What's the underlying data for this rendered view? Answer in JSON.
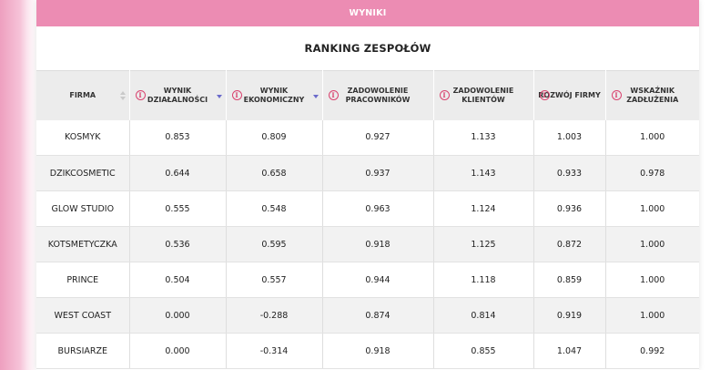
{
  "header": {
    "bar_label": "WYNIKI",
    "title": "RANKING ZESPOŁÓW"
  },
  "table": {
    "columns": [
      {
        "label": "FIRMA",
        "info": false,
        "sort": "both"
      },
      {
        "label": "WYNIK DZIAŁALNOŚCI",
        "info": true,
        "sort": "desc"
      },
      {
        "label": "WYNIK EKONOMICZNY",
        "info": true,
        "sort": "desc"
      },
      {
        "label": "ZADOWOLENIE PRACOWNIKÓW",
        "info": true,
        "sort": "none"
      },
      {
        "label": "ZADOWOLENIE KLIENTÓW",
        "info": true,
        "sort": "none"
      },
      {
        "label": "ROZWÓJ FIRMY",
        "info": true,
        "sort": "none"
      },
      {
        "label": "WSKAŹNIK ZADŁUŻENIA",
        "info": true,
        "sort": "none"
      }
    ],
    "rows": [
      [
        "KOSMYK",
        "0.853",
        "0.809",
        "0.927",
        "1.133",
        "1.003",
        "1.000"
      ],
      [
        "DZIKCOSMETIC",
        "0.644",
        "0.658",
        "0.937",
        "1.143",
        "0.933",
        "0.978"
      ],
      [
        "GLOW STUDIO",
        "0.555",
        "0.548",
        "0.963",
        "1.124",
        "0.936",
        "1.000"
      ],
      [
        "KOTSMETYCZKA",
        "0.536",
        "0.595",
        "0.918",
        "1.125",
        "0.872",
        "1.000"
      ],
      [
        "PRINCE",
        "0.504",
        "0.557",
        "0.944",
        "1.118",
        "0.859",
        "1.000"
      ],
      [
        "WEST COAST",
        "0.000",
        "-0.288",
        "0.874",
        "0.814",
        "0.919",
        "1.000"
      ],
      [
        "BURSIARZE",
        "0.000",
        "-0.314",
        "0.918",
        "0.855",
        "1.047",
        "0.992"
      ]
    ]
  },
  "colors": {
    "accent": "#ec8cb3",
    "info_icon": "#d9436f",
    "sort_active": "#6a6acb"
  }
}
